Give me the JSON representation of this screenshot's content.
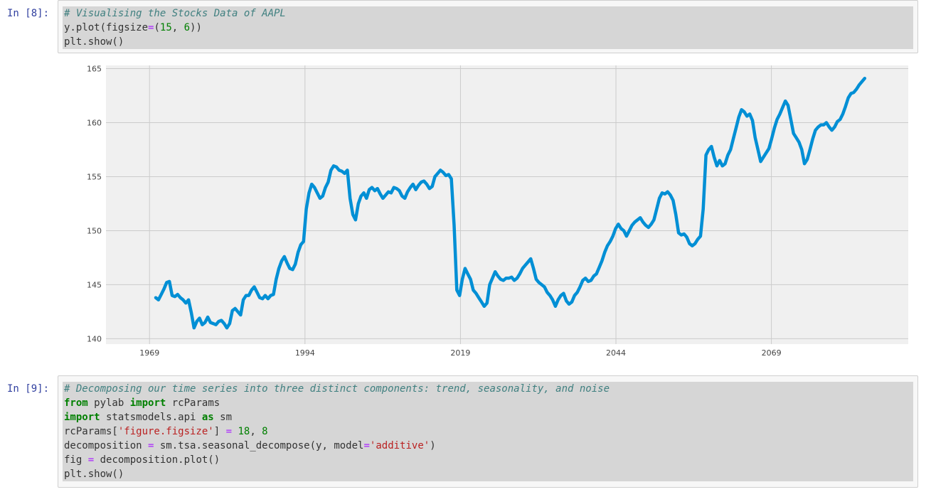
{
  "cells": [
    {
      "prompt": "In [8]:",
      "lines": [
        [
          {
            "t": "cm",
            "v": "# Visualising the Stocks Data of AAPL"
          }
        ],
        [
          {
            "t": "",
            "v": "y.plot(figsize"
          },
          {
            "t": "op",
            "v": "="
          },
          {
            "t": "",
            "v": "("
          },
          {
            "t": "num",
            "v": "15"
          },
          {
            "t": "",
            "v": ", "
          },
          {
            "t": "num",
            "v": "6"
          },
          {
            "t": "",
            "v": "))"
          }
        ],
        [
          {
            "t": "",
            "v": "plt.show()"
          }
        ]
      ]
    },
    {
      "prompt": "In [9]:",
      "lines": [
        [
          {
            "t": "cm",
            "v": "# Decomposing our time series into three distinct components: trend, seasonality, and noise"
          }
        ],
        [
          {
            "t": "kw",
            "v": "from"
          },
          {
            "t": "",
            "v": " pylab "
          },
          {
            "t": "kw",
            "v": "import"
          },
          {
            "t": "",
            "v": " rcParams"
          }
        ],
        [
          {
            "t": "kw",
            "v": "import"
          },
          {
            "t": "",
            "v": " statsmodels.api "
          },
          {
            "t": "kw",
            "v": "as"
          },
          {
            "t": "",
            "v": " sm"
          }
        ],
        [
          {
            "t": "",
            "v": "rcParams["
          },
          {
            "t": "str",
            "v": "'figure.figsize'"
          },
          {
            "t": "",
            "v": "] "
          },
          {
            "t": "op",
            "v": "="
          },
          {
            "t": "",
            "v": " "
          },
          {
            "t": "num",
            "v": "18"
          },
          {
            "t": "",
            "v": ", "
          },
          {
            "t": "num",
            "v": "8"
          }
        ],
        [
          {
            "t": "",
            "v": "decomposition "
          },
          {
            "t": "op",
            "v": "="
          },
          {
            "t": "",
            "v": " sm.tsa.seasonal_decompose(y, model"
          },
          {
            "t": "op",
            "v": "="
          },
          {
            "t": "str",
            "v": "'additive'"
          },
          {
            "t": "",
            "v": ")"
          }
        ],
        [
          {
            "t": "",
            "v": "fig "
          },
          {
            "t": "op",
            "v": "="
          },
          {
            "t": "",
            "v": " decomposition.plot()"
          }
        ],
        [
          {
            "t": "",
            "v": "plt.show()"
          }
        ]
      ]
    }
  ],
  "chart_data": {
    "type": "line",
    "title": "",
    "xlabel": "",
    "ylabel": "",
    "xlim": [
      1962,
      2091
    ],
    "ylim": [
      139.5,
      165.3
    ],
    "x_ticks": [
      "1969",
      "1994",
      "2019",
      "2044",
      "2069"
    ],
    "y_ticks": [
      "140",
      "145",
      "150",
      "155",
      "160",
      "165"
    ],
    "grid": true,
    "line_color": "#008fd5",
    "background": "#f0f0f0",
    "series": [
      {
        "x_start": 1970,
        "x_end": 2084,
        "values": [
          143.8,
          143.6,
          144.1,
          144.6,
          145.2,
          145.3,
          144.0,
          143.9,
          144.1,
          143.8,
          143.6,
          143.3,
          143.6,
          142.4,
          141.0,
          141.6,
          141.9,
          141.3,
          141.5,
          142.0,
          141.5,
          141.4,
          141.3,
          141.6,
          141.7,
          141.4,
          141.0,
          141.4,
          142.6,
          142.8,
          142.5,
          142.2,
          143.6,
          144.0,
          144.0,
          144.5,
          144.8,
          144.3,
          143.8,
          143.7,
          144.0,
          143.7,
          144.0,
          144.1,
          145.5,
          146.5,
          147.2,
          147.6,
          147.0,
          146.5,
          146.4,
          146.9,
          148.0,
          148.7,
          149.0,
          152.0,
          153.5,
          154.3,
          154.0,
          153.5,
          153.0,
          153.2,
          154.0,
          154.5,
          155.6,
          156.0,
          155.9,
          155.6,
          155.5,
          155.3,
          155.6,
          153.0,
          151.5,
          151.0,
          152.5,
          153.2,
          153.5,
          153.0,
          153.8,
          154.0,
          153.7,
          153.9,
          153.4,
          153.0,
          153.3,
          153.6,
          153.5,
          154.0,
          153.9,
          153.7,
          153.2,
          153.0,
          153.6,
          154.0,
          154.3,
          153.8,
          154.2,
          154.5,
          154.6,
          154.3,
          153.9,
          154.1,
          155.0,
          155.3,
          155.6,
          155.4,
          155.1,
          155.2,
          154.8,
          150.5,
          144.5,
          144.0,
          145.5,
          146.5,
          146.0,
          145.5,
          144.5,
          144.2,
          143.8,
          143.4,
          143.0,
          143.3,
          145.0,
          145.6,
          146.2,
          145.8,
          145.5,
          145.4,
          145.6,
          145.6,
          145.7,
          145.4,
          145.6,
          146.0,
          146.5,
          146.8,
          147.1,
          147.4,
          146.5,
          145.5,
          145.2,
          145.0,
          144.8,
          144.3,
          144.0,
          143.6,
          143.0,
          143.6,
          144.0,
          144.2,
          143.5,
          143.2,
          143.4,
          144.0,
          144.3,
          144.8,
          145.4,
          145.6,
          145.3,
          145.4,
          145.8,
          146.0,
          146.6,
          147.2,
          148.0,
          148.6,
          149.0,
          149.5,
          150.2,
          150.6,
          150.2,
          150.0,
          149.5,
          150.0,
          150.5,
          150.8,
          151.0,
          151.2,
          150.8,
          150.5,
          150.3,
          150.6,
          151.0,
          152.0,
          153.0,
          153.5,
          153.4,
          153.6,
          153.3,
          152.8,
          151.5,
          149.8,
          149.6,
          149.7,
          149.4,
          148.8,
          148.6,
          148.8,
          149.2,
          149.5,
          152.0,
          157.0,
          157.5,
          157.8,
          156.8,
          156.0,
          156.5,
          156.0,
          156.2,
          157.0,
          157.5,
          158.5,
          159.5,
          160.5,
          161.2,
          161.0,
          160.6,
          160.8,
          160.2,
          158.6,
          157.5,
          156.4,
          156.8,
          157.2,
          157.6,
          158.5,
          159.5,
          160.3,
          160.8,
          161.4,
          162.0,
          161.6,
          160.3,
          159.0,
          158.6,
          158.2,
          157.5,
          156.2,
          156.6,
          157.5,
          158.5,
          159.3,
          159.6,
          159.8,
          159.8,
          160.0,
          159.6,
          159.3,
          159.6,
          160.1,
          160.3,
          160.8,
          161.5,
          162.3,
          162.7,
          162.8,
          163.1,
          163.5,
          163.8,
          164.1
        ]
      }
    ]
  }
}
